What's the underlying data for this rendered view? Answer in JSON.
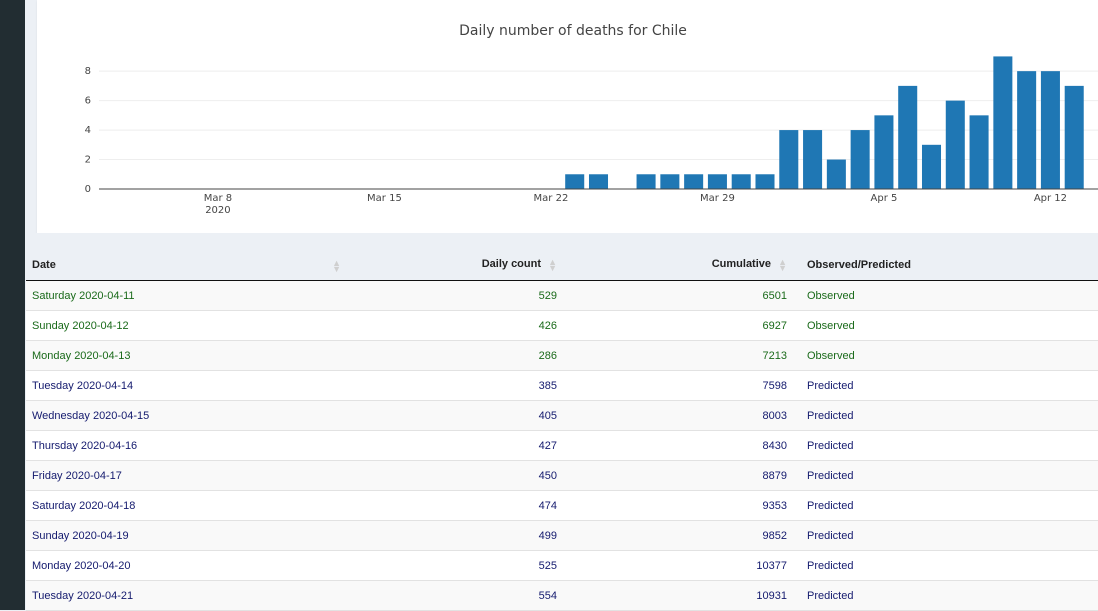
{
  "chart_data": {
    "type": "bar",
    "title": "Daily number of deaths for Chile",
    "color": "#1f77b4",
    "x_start": "2020-03-03",
    "x_end": "2020-04-14",
    "ylim": [
      0,
      9.3
    ],
    "yticks": [
      0,
      2,
      4,
      6,
      8
    ],
    "xticks": [
      {
        "date": "2020-03-08",
        "label": "Mar 8",
        "sublabel": "2020"
      },
      {
        "date": "2020-03-15",
        "label": "Mar 15",
        "sublabel": ""
      },
      {
        "date": "2020-03-22",
        "label": "Mar 22",
        "sublabel": ""
      },
      {
        "date": "2020-03-29",
        "label": "Mar 29",
        "sublabel": ""
      },
      {
        "date": "2020-04-05",
        "label": "Apr 5",
        "sublabel": ""
      },
      {
        "date": "2020-04-12",
        "label": "Apr 12",
        "sublabel": ""
      }
    ],
    "bars": [
      {
        "date": "2020-03-23",
        "value": 1
      },
      {
        "date": "2020-03-24",
        "value": 1
      },
      {
        "date": "2020-03-26",
        "value": 1
      },
      {
        "date": "2020-03-27",
        "value": 1
      },
      {
        "date": "2020-03-28",
        "value": 1
      },
      {
        "date": "2020-03-29",
        "value": 1
      },
      {
        "date": "2020-03-30",
        "value": 1
      },
      {
        "date": "2020-03-31",
        "value": 1
      },
      {
        "date": "2020-04-01",
        "value": 4
      },
      {
        "date": "2020-04-02",
        "value": 4
      },
      {
        "date": "2020-04-03",
        "value": 2
      },
      {
        "date": "2020-04-04",
        "value": 4
      },
      {
        "date": "2020-04-05",
        "value": 5
      },
      {
        "date": "2020-04-06",
        "value": 7
      },
      {
        "date": "2020-04-07",
        "value": 3
      },
      {
        "date": "2020-04-08",
        "value": 6
      },
      {
        "date": "2020-04-09",
        "value": 5
      },
      {
        "date": "2020-04-10",
        "value": 9
      },
      {
        "date": "2020-04-11",
        "value": 8
      },
      {
        "date": "2020-04-12",
        "value": 8
      },
      {
        "date": "2020-04-13",
        "value": 7
      }
    ]
  },
  "table": {
    "headers": {
      "date": "Date",
      "daily": "Daily count",
      "cumulative": "Cumulative",
      "status": "Observed/Predicted"
    },
    "colors": {
      "observed": "#1a6a1a",
      "predicted": "#141a6e"
    },
    "rows": [
      {
        "date": "Saturday 2020-04-11",
        "daily": "529",
        "cumulative": "6501",
        "status": "Observed"
      },
      {
        "date": "Sunday 2020-04-12",
        "daily": "426",
        "cumulative": "6927",
        "status": "Observed"
      },
      {
        "date": "Monday 2020-04-13",
        "daily": "286",
        "cumulative": "7213",
        "status": "Observed"
      },
      {
        "date": "Tuesday 2020-04-14",
        "daily": "385",
        "cumulative": "7598",
        "status": "Predicted"
      },
      {
        "date": "Wednesday 2020-04-15",
        "daily": "405",
        "cumulative": "8003",
        "status": "Predicted"
      },
      {
        "date": "Thursday 2020-04-16",
        "daily": "427",
        "cumulative": "8430",
        "status": "Predicted"
      },
      {
        "date": "Friday 2020-04-17",
        "daily": "450",
        "cumulative": "8879",
        "status": "Predicted"
      },
      {
        "date": "Saturday 2020-04-18",
        "daily": "474",
        "cumulative": "9353",
        "status": "Predicted"
      },
      {
        "date": "Sunday 2020-04-19",
        "daily": "499",
        "cumulative": "9852",
        "status": "Predicted"
      },
      {
        "date": "Monday 2020-04-20",
        "daily": "525",
        "cumulative": "10377",
        "status": "Predicted"
      },
      {
        "date": "Tuesday 2020-04-21",
        "daily": "554",
        "cumulative": "10931",
        "status": "Predicted"
      }
    ]
  }
}
